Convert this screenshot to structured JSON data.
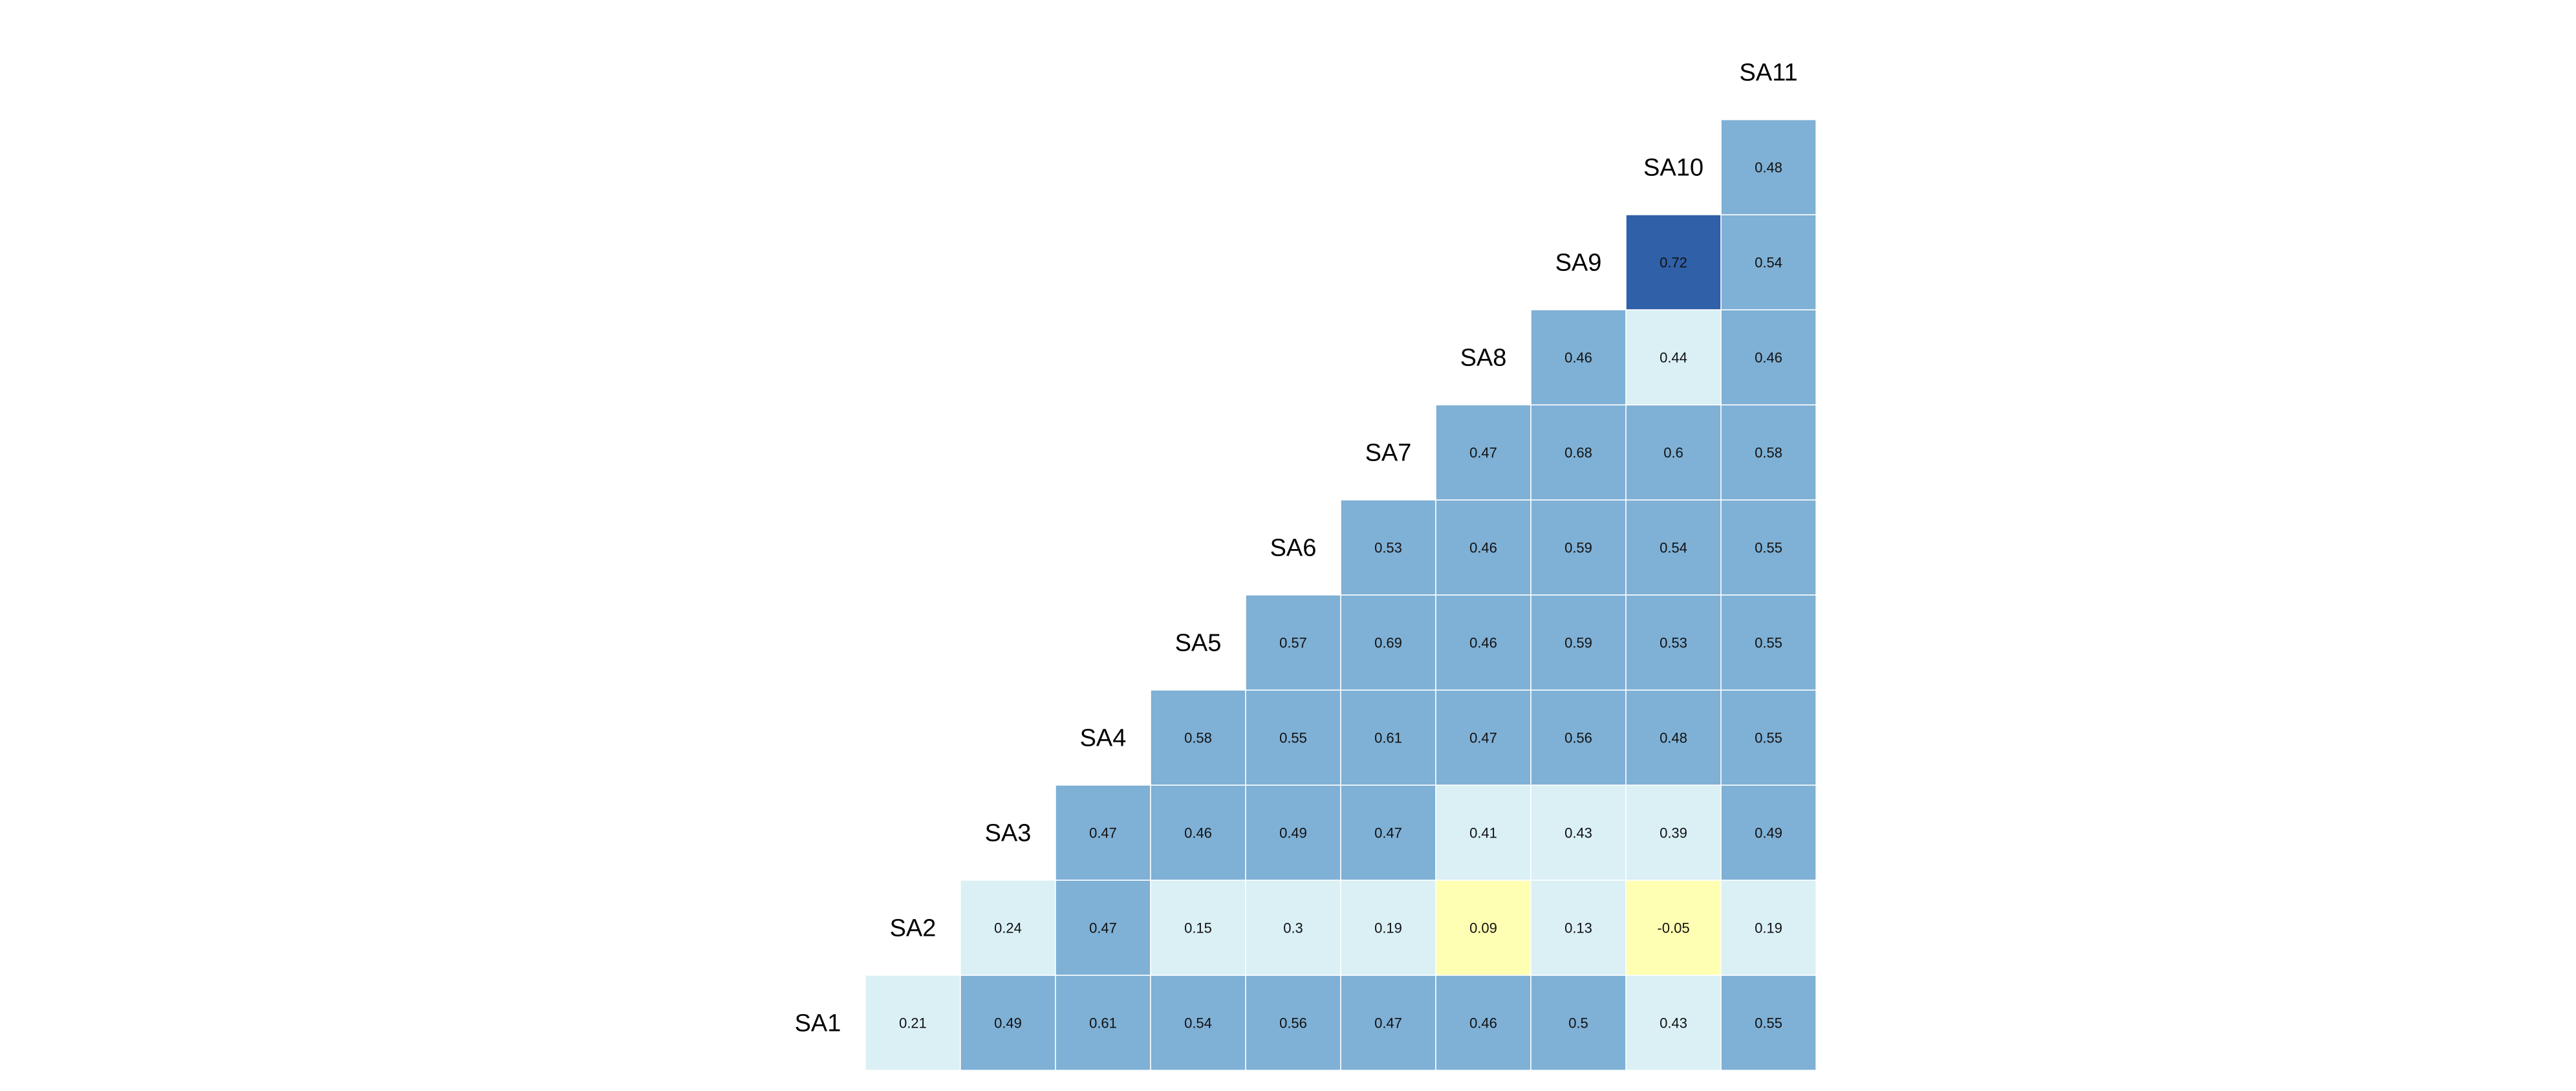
{
  "chart_data": {
    "type": "heatmap",
    "variables": [
      "SA1",
      "SA2",
      "SA3",
      "SA4",
      "SA5",
      "SA6",
      "SA7",
      "SA8",
      "SA9",
      "SA10",
      "SA11"
    ],
    "columns": [
      "SA2",
      "SA3",
      "SA4",
      "SA5",
      "SA6",
      "SA7",
      "SA8",
      "SA9",
      "SA10",
      "SA11"
    ],
    "matrix": {
      "SA2": [
        0.21
      ],
      "SA3": [
        0.49,
        0.24
      ],
      "SA4": [
        0.61,
        0.47,
        0.47
      ],
      "SA5": [
        0.54,
        0.15,
        0.46,
        0.58
      ],
      "SA6": [
        0.56,
        0.3,
        0.49,
        0.55,
        0.57
      ],
      "SA7": [
        0.47,
        0.19,
        0.47,
        0.61,
        0.69,
        0.53
      ],
      "SA8": [
        0.46,
        0.09,
        0.41,
        0.47,
        0.46,
        0.46,
        0.47
      ],
      "SA9": [
        0.5,
        0.13,
        0.43,
        0.56,
        0.59,
        0.59,
        0.68,
        0.46
      ],
      "SA10": [
        0.43,
        -0.05,
        0.39,
        0.48,
        0.53,
        0.54,
        0.6,
        0.44,
        0.72
      ],
      "SA11": [
        0.55,
        0.19,
        0.49,
        0.55,
        0.55,
        0.55,
        0.58,
        0.46,
        0.54,
        0.48
      ]
    },
    "display_labels": {
      "SA2": [
        "0.21"
      ],
      "SA3": [
        "0.49",
        "0.24"
      ],
      "SA4": [
        "0.61",
        "0.47",
        "0.47"
      ],
      "SA5": [
        "0.54",
        "0.15",
        "0.46",
        "0.58"
      ],
      "SA6": [
        "0.56",
        "0.3",
        "0.49",
        "0.55",
        "0.57"
      ],
      "SA7": [
        "0.47",
        "0.19",
        "0.47",
        "0.61",
        "0.69",
        "0.53"
      ],
      "SA8": [
        "0.46",
        "0.09",
        "0.41",
        "0.47",
        "0.46",
        "0.46",
        "0.47"
      ],
      "SA9": [
        "0.5",
        "0.13",
        "0.43",
        "0.56",
        "0.59",
        "0.59",
        "0.68",
        "0.46"
      ],
      "SA10": [
        "0.43",
        "-0.05",
        "0.39",
        "0.48",
        "0.53",
        "0.54",
        "0.6",
        "0.44",
        "0.72"
      ],
      "SA11": [
        "0.55",
        "0.19",
        "0.49",
        "0.55",
        "0.55",
        "0.55",
        "0.58",
        "0.46",
        "0.54",
        "0.48"
      ]
    },
    "color_scale": [
      {
        "max": 0.1,
        "color": "#ffffb3"
      },
      {
        "max": 0.45,
        "color": "#daf0f5"
      },
      {
        "max": 0.7,
        "color": "#7fb0d5"
      },
      {
        "max": 1.0,
        "color": "#3060a8"
      }
    ],
    "cell_border_color": "#ffffff",
    "legend": "none",
    "grid": false
  }
}
